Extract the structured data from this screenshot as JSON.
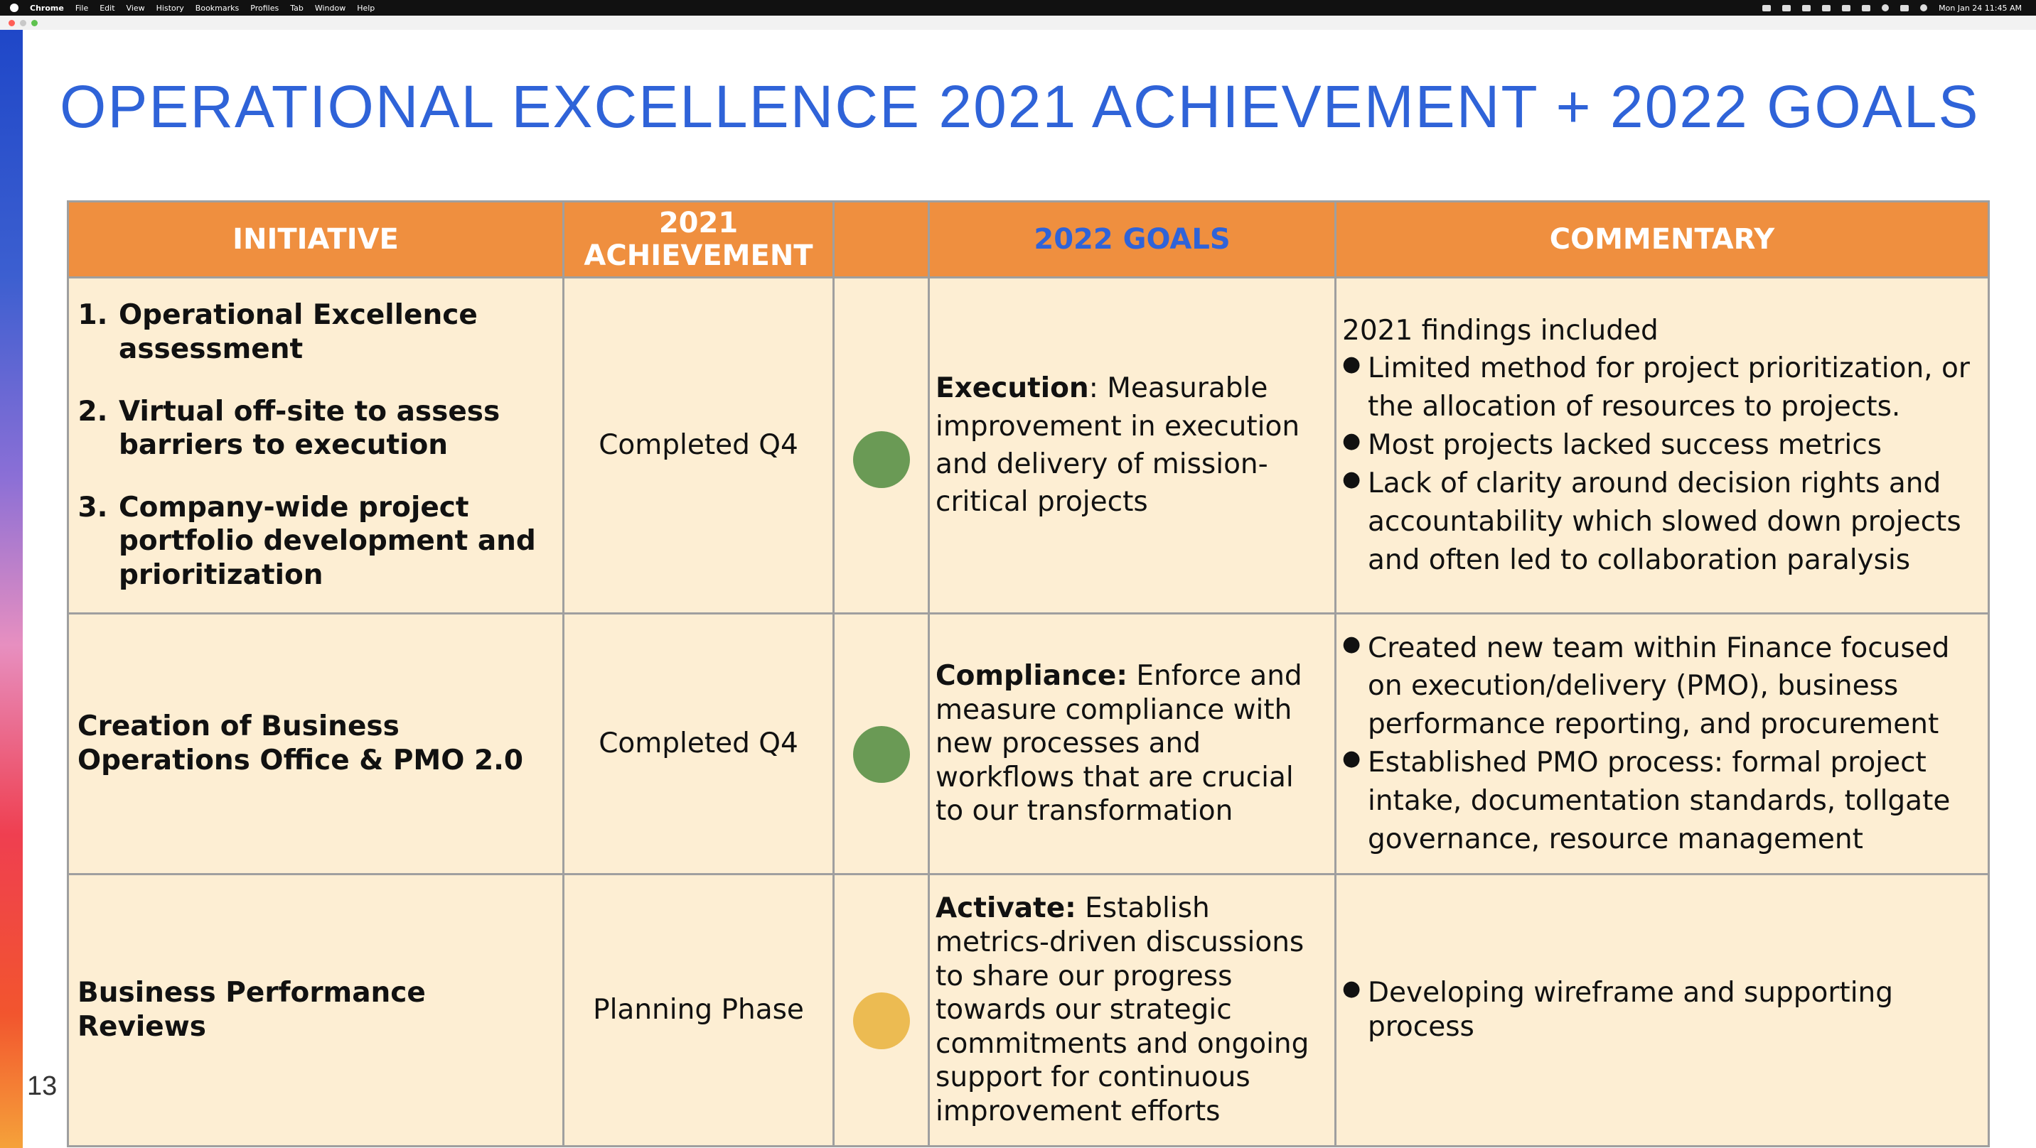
{
  "menubar": {
    "app": "Chrome",
    "menus": [
      "File",
      "Edit",
      "View",
      "History",
      "Bookmarks",
      "Profiles",
      "Tab",
      "Window",
      "Help"
    ],
    "clock": "Mon Jan 24  11:45 AM"
  },
  "slide": {
    "title": "OPERATIONAL EXCELLENCE 2021 ACHIEVEMENT + 2022 GOALS",
    "page_number": "13",
    "headers": {
      "initiative": "INITIATIVE",
      "achievement_line1": "2021",
      "achievement_line2": "ACHIEVEMENT",
      "status": "",
      "goals": "2022 GOALS",
      "commentary": "COMMENTARY"
    },
    "rows": [
      {
        "initiatives": [
          "Operational Excellence assessment",
          "Virtual off-site to assess barriers to execution",
          "Company-wide project portfolio development and prioritization"
        ],
        "achievement": "Completed Q4",
        "status": "green",
        "status_color": "#6a9a55",
        "goal_label": "Execution",
        "goal_text": ": Measurable improvement in execution and delivery of mission-critical projects",
        "commentary_intro": "2021 findings included",
        "commentary": [
          "Limited method for project prioritization, or the allocation of resources to projects.",
          "Most projects lacked success metrics",
          "Lack of clarity around decision rights and accountability which slowed down projects and often led to collaboration paralysis"
        ]
      },
      {
        "initiative": "Creation of Business Operations Office & PMO 2.0",
        "achievement": "Completed Q4",
        "status": "green",
        "status_color": "#6a9a55",
        "goal_label": "Compliance:",
        "goal_text": " Enforce and measure compliance with new processes and workflows that are crucial to our transformation",
        "commentary": [
          "Created new team within Finance focused on execution/delivery (PMO), business performance reporting, and procurement",
          "Established PMO process: formal project intake, documentation standards, tollgate governance, resource management"
        ]
      },
      {
        "initiative": "Business Performance Reviews",
        "achievement": "Planning Phase",
        "status": "yellow",
        "status_color": "#ecbb52",
        "goal_label": "Activate:",
        "goal_text": " Establish metrics-driven discussions to share our progress towards our strategic commitments and ongoing support for continuous improvement efforts",
        "commentary": [
          "Developing wireframe and supporting process"
        ]
      }
    ]
  }
}
